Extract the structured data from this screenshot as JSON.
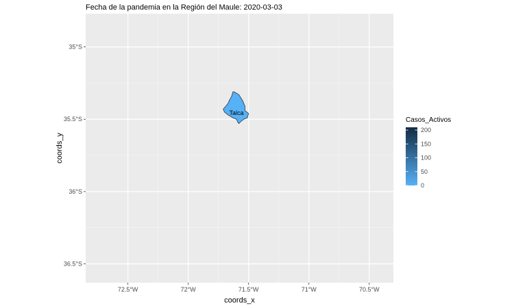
{
  "chart_data": {
    "type": "map",
    "title": "Fecha de la pandemia en la Región del Maule: 2020-03-03",
    "xlabel": "coords_x",
    "ylabel": "coords_y",
    "xlim": [
      -72.85,
      -70.3
    ],
    "ylim": [
      -36.63,
      -34.77
    ],
    "x_ticks": [
      {
        "value": -72.5,
        "label": "72.5°W"
      },
      {
        "value": -72.0,
        "label": "72°W"
      },
      {
        "value": -71.5,
        "label": "71.5°W"
      },
      {
        "value": -71.0,
        "label": "71°W"
      },
      {
        "value": -70.5,
        "label": "70.5°W"
      }
    ],
    "y_ticks": [
      {
        "value": -35.0,
        "label": "35°S"
      },
      {
        "value": -35.5,
        "label": "35.5°S"
      },
      {
        "value": -36.0,
        "label": "36°S"
      },
      {
        "value": -36.5,
        "label": "36.5°S"
      }
    ],
    "regions": [
      {
        "name": "Talca",
        "value": 0,
        "fill": "#56B1F7",
        "label_pos": [
          -71.66,
          -35.47
        ],
        "outline": [
          [
            -71.62,
            -35.31
          ],
          [
            -71.58,
            -35.33
          ],
          [
            -71.55,
            -35.37
          ],
          [
            -71.53,
            -35.41
          ],
          [
            -71.53,
            -35.44
          ],
          [
            -71.5,
            -35.46
          ],
          [
            -71.51,
            -35.49
          ],
          [
            -71.54,
            -35.5
          ],
          [
            -71.57,
            -35.52
          ],
          [
            -71.58,
            -35.53
          ],
          [
            -71.59,
            -35.52
          ],
          [
            -71.6,
            -35.5
          ],
          [
            -71.63,
            -35.49
          ],
          [
            -71.65,
            -35.48
          ],
          [
            -71.67,
            -35.47
          ],
          [
            -71.7,
            -35.45
          ],
          [
            -71.71,
            -35.43
          ],
          [
            -71.69,
            -35.41
          ],
          [
            -71.67,
            -35.39
          ],
          [
            -71.66,
            -35.37
          ],
          [
            -71.64,
            -35.34
          ],
          [
            -71.63,
            -35.31
          ]
        ]
      }
    ],
    "legend": {
      "title": "Casos_Activos",
      "position": "right",
      "min": 0,
      "max": 210,
      "color_low": "#56B1F7",
      "color_high": "#132B43",
      "breaks": [
        {
          "value": 0,
          "label": "0"
        },
        {
          "value": 50,
          "label": "50"
        },
        {
          "value": 100,
          "label": "100"
        },
        {
          "value": 150,
          "label": "150"
        },
        {
          "value": 200,
          "label": "200"
        }
      ]
    },
    "panel_background": "#EBEBEB",
    "grid": true
  }
}
